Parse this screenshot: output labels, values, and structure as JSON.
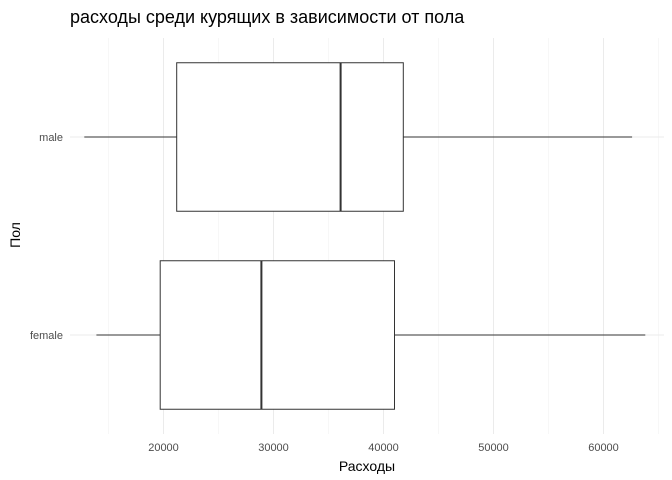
{
  "chart_data": {
    "type": "boxplot",
    "orientation": "horizontal",
    "title": "расходы среди курящих в зависимости от пола",
    "xlabel": "Расходы",
    "ylabel": "Пол",
    "xlim": [
      11500,
      65500
    ],
    "x_ticks": [
      20000,
      30000,
      40000,
      50000,
      60000
    ],
    "x_tick_labels": [
      "20000",
      "30000",
      "40000",
      "50000",
      "60000"
    ],
    "categories": [
      "female",
      "male"
    ],
    "boxes": [
      {
        "category": "female",
        "whisker_low": 13900,
        "q1": 19700,
        "median": 28900,
        "q3": 41000,
        "whisker_high": 63800
      },
      {
        "category": "male",
        "whisker_low": 12800,
        "q1": 21200,
        "median": 36100,
        "q3": 41800,
        "whisker_high": 62600
      }
    ],
    "grid": true,
    "legend": "none"
  }
}
